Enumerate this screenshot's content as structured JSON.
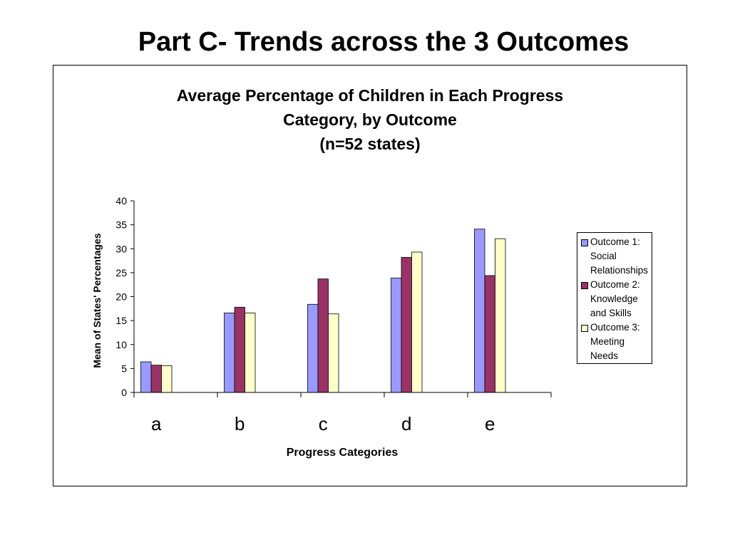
{
  "slide": {
    "title": "Part C- Trends across the 3 Outcomes"
  },
  "chart_data": {
    "type": "bar",
    "title_lines": [
      "Average Percentage of Children in Each Progress",
      "Category, by Outcome",
      "(n=52 states)"
    ],
    "xlabel": "Progress Categories",
    "ylabel": "Mean of States' Percentages",
    "ylim": [
      0,
      40
    ],
    "yticks": [
      0,
      5,
      10,
      15,
      20,
      25,
      30,
      35,
      40
    ],
    "categories": [
      "a",
      "b",
      "c",
      "d",
      "e"
    ],
    "grid": false,
    "legend_position": "right",
    "series": [
      {
        "name": "Outcome 1: Social Relationships",
        "legend_lines": [
          "Outcome 1:",
          "Social",
          "Relationships"
        ],
        "color": "#9999ff",
        "values": [
          6.4,
          16.6,
          18.4,
          23.9,
          34.1
        ]
      },
      {
        "name": "Outcome 2: Knowledge and Skills",
        "legend_lines": [
          "Outcome 2:",
          "Knowledge",
          "and Skills"
        ],
        "color": "#993366",
        "values": [
          5.7,
          17.8,
          23.7,
          28.2,
          24.4
        ]
      },
      {
        "name": "Outcome 3: Meeting Needs",
        "legend_lines": [
          "Outcome 3:",
          "Meeting",
          "Needs"
        ],
        "color": "#ffffcc",
        "values": [
          5.6,
          16.6,
          16.4,
          29.3,
          32.1
        ]
      }
    ]
  }
}
